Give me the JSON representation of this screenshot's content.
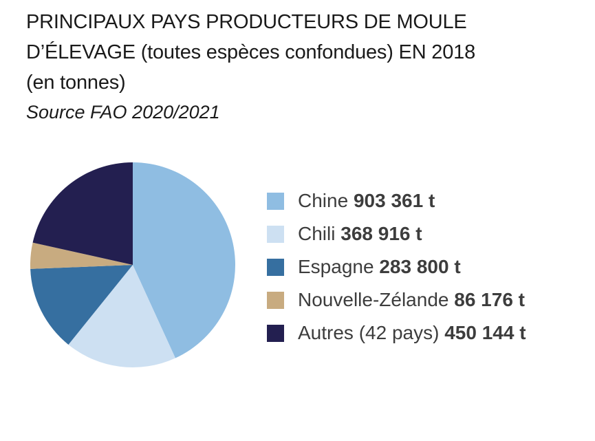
{
  "title": {
    "line1": "PRINCIPAUX PAYS PRODUCTEURS DE MOULE",
    "line2": "D’ÉLEVAGE (toutes espèces confondues) EN 2018",
    "line3": "(en tonnes)",
    "source": "Source FAO 2020/2021"
  },
  "chart_data": {
    "type": "pie",
    "unit": "t",
    "slices": [
      {
        "name": "Chine",
        "value": 903361,
        "label": "903 361 t",
        "color": "#8fbde2"
      },
      {
        "name": "Chili",
        "value": 368916,
        "label": "368 916 t",
        "color": "#cde0f2"
      },
      {
        "name": "Espagne",
        "value": 283800,
        "label": "283 800 t",
        "color": "#366fa0"
      },
      {
        "name": "Nouvelle-Zélande",
        "value": 86176,
        "label": "86 176 t",
        "color": "#c8ab80"
      },
      {
        "name": "Autres (42 pays)",
        "value": 450144,
        "label": "450 144 t",
        "color": "#231f50"
      }
    ]
  }
}
